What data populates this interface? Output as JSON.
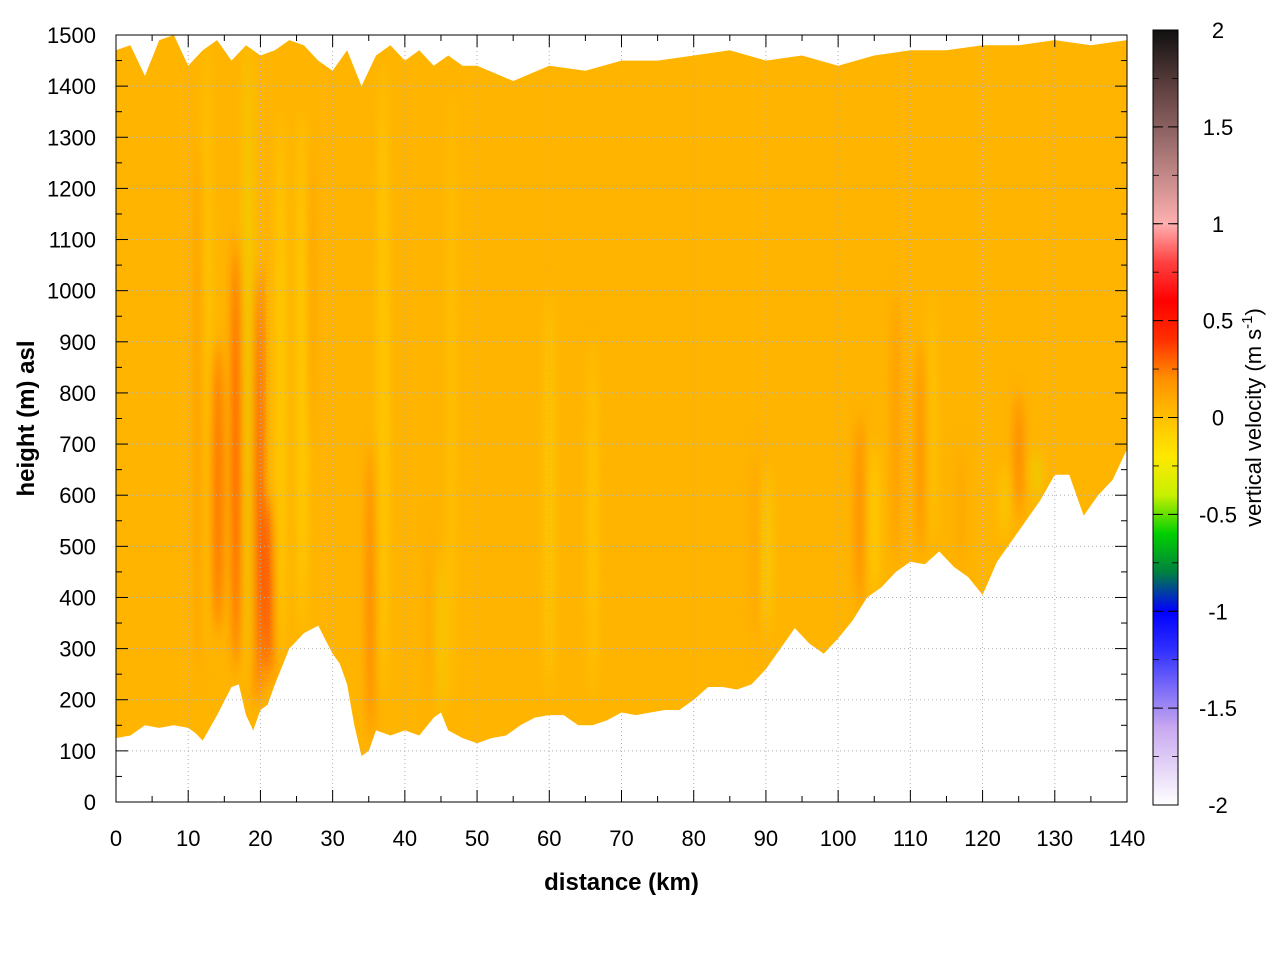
{
  "chart_data": {
    "type": "heatmap",
    "title": "",
    "xlabel": "distance (km)",
    "ylabel": "height (m) asl",
    "xlim": [
      0,
      140
    ],
    "ylim": [
      0,
      1500
    ],
    "x_ticks": [
      0,
      10,
      20,
      30,
      40,
      50,
      60,
      70,
      80,
      90,
      100,
      110,
      120,
      130,
      140
    ],
    "x_tick_labels": [
      "0",
      "10",
      "20",
      "30",
      "40",
      "50",
      "60",
      "70",
      "80",
      "90",
      "100",
      "110",
      "120",
      "130",
      "140"
    ],
    "y_ticks": [
      0,
      100,
      200,
      300,
      400,
      500,
      600,
      700,
      800,
      900,
      1000,
      1100,
      1200,
      1300,
      1400,
      1500
    ],
    "y_tick_labels": [
      "0",
      "100",
      "200",
      "300",
      "400",
      "500",
      "600",
      "700",
      "800",
      "900",
      "1000",
      "1100",
      "1200",
      "1300",
      "1400",
      "1500"
    ],
    "grid": true,
    "colorbar": {
      "label_main": "vertical velocity (m s",
      "label_sup": "-1",
      "label_end": ")",
      "range": [
        -2,
        2
      ],
      "ticks": [
        2,
        1.5,
        1,
        0.5,
        0,
        -0.5,
        -1,
        -1.5,
        -2
      ],
      "tick_labels": [
        "2",
        "1.5",
        "1",
        "0.5",
        "0",
        "-0.5",
        "-1",
        "-1.5",
        "-2"
      ],
      "colors": [
        {
          "v": -2.0,
          "c": "#ffffff"
        },
        {
          "v": -1.6,
          "c": "#c8a8f0"
        },
        {
          "v": -1.2,
          "c": "#3030ff"
        },
        {
          "v": -1.0,
          "c": "#0000ff"
        },
        {
          "v": -0.8,
          "c": "#008040"
        },
        {
          "v": -0.6,
          "c": "#00d000"
        },
        {
          "v": -0.4,
          "c": "#c8f000"
        },
        {
          "v": -0.2,
          "c": "#ffe800"
        },
        {
          "v": 0.0,
          "c": "#ffc000"
        },
        {
          "v": 0.2,
          "c": "#ff9000"
        },
        {
          "v": 0.4,
          "c": "#ff3000"
        },
        {
          "v": 0.6,
          "c": "#ff0000"
        },
        {
          "v": 0.8,
          "c": "#ff4040"
        },
        {
          "v": 1.0,
          "c": "#ffb0b0"
        },
        {
          "v": 1.4,
          "c": "#a07070"
        },
        {
          "v": 1.7,
          "c": "#604040"
        },
        {
          "v": 2.0,
          "c": "#101010"
        }
      ]
    },
    "field": {
      "background_value": 0.05,
      "background_color": "#ffb000",
      "terrain_km": [
        0,
        2,
        4,
        6,
        8,
        10,
        11,
        12,
        14,
        16,
        17,
        18,
        19,
        20,
        21,
        22,
        24,
        26,
        28,
        30,
        31,
        32,
        33,
        34,
        35,
        36,
        38,
        40,
        42,
        44,
        45,
        46,
        48,
        50,
        52,
        54,
        56,
        58,
        60,
        62,
        64,
        66,
        68,
        70,
        72,
        74,
        76,
        78,
        80,
        82,
        84,
        86,
        88,
        90,
        92,
        94,
        96,
        98,
        100,
        102,
        104,
        106,
        108,
        110,
        112,
        114,
        116,
        118,
        120,
        122,
        124,
        126,
        128,
        130,
        132,
        134,
        136,
        138,
        140
      ],
      "terrain_m": [
        125,
        130,
        150,
        145,
        150,
        145,
        135,
        120,
        170,
        225,
        230,
        170,
        140,
        180,
        190,
        230,
        300,
        330,
        345,
        290,
        270,
        230,
        150,
        90,
        100,
        140,
        130,
        140,
        130,
        165,
        175,
        140,
        125,
        115,
        125,
        130,
        150,
        165,
        170,
        170,
        150,
        150,
        160,
        175,
        170,
        175,
        180,
        180,
        200,
        225,
        225,
        220,
        230,
        260,
        300,
        340,
        310,
        290,
        320,
        355,
        400,
        420,
        450,
        470,
        465,
        490,
        460,
        440,
        405,
        470,
        510,
        550,
        590,
        640,
        640,
        560,
        600,
        630,
        690
      ],
      "top_km": [
        0,
        2,
        4,
        6,
        8,
        10,
        12,
        14,
        16,
        18,
        20,
        22,
        24,
        26,
        28,
        30,
        32,
        34,
        36,
        38,
        40,
        42,
        44,
        46,
        48,
        50,
        55,
        60,
        65,
        70,
        75,
        80,
        85,
        90,
        95,
        100,
        105,
        110,
        115,
        120,
        125,
        130,
        135,
        140
      ],
      "top_m": [
        1470,
        1480,
        1420,
        1490,
        1500,
        1440,
        1470,
        1490,
        1450,
        1480,
        1460,
        1470,
        1490,
        1480,
        1450,
        1430,
        1470,
        1400,
        1460,
        1480,
        1450,
        1470,
        1440,
        1460,
        1440,
        1440,
        1410,
        1440,
        1430,
        1450,
        1450,
        1460,
        1470,
        1450,
        1460,
        1440,
        1460,
        1470,
        1470,
        1480,
        1480,
        1490,
        1480,
        1490
      ],
      "bands": [
        {
          "x": 11.5,
          "ytop": 1300,
          "ybot": 250,
          "w": 1.0,
          "v": 0.2
        },
        {
          "x": 14.0,
          "ytop": 900,
          "ybot": 330,
          "w": 1.6,
          "v": 0.3
        },
        {
          "x": 16.8,
          "ytop": 1100,
          "ybot": 260,
          "w": 1.1,
          "v": 0.4
        },
        {
          "x": 18.3,
          "ytop": 1500,
          "ybot": 250,
          "w": 0.7,
          "v": -0.3
        },
        {
          "x": 19.6,
          "ytop": 1050,
          "ybot": 200,
          "w": 1.1,
          "v": 0.5
        },
        {
          "x": 21.2,
          "ytop": 600,
          "ybot": 240,
          "w": 1.1,
          "v": 0.45
        },
        {
          "x": 22.8,
          "ytop": 1350,
          "ybot": 300,
          "w": 0.7,
          "v": -0.2
        },
        {
          "x": 25.8,
          "ytop": 1350,
          "ybot": 330,
          "w": 0.8,
          "v": -0.2
        },
        {
          "x": 26.8,
          "ytop": 1300,
          "ybot": 700,
          "w": 0.8,
          "v": 0.2
        },
        {
          "x": 12.6,
          "ytop": 1500,
          "ybot": 300,
          "w": 0.5,
          "v": -0.2
        },
        {
          "x": 35.3,
          "ytop": 700,
          "ybot": 120,
          "w": 0.8,
          "v": 0.3
        },
        {
          "x": 37.0,
          "ytop": 1450,
          "ybot": 200,
          "w": 0.8,
          "v": -0.15
        },
        {
          "x": 43.5,
          "ytop": 550,
          "ybot": 170,
          "w": 0.6,
          "v": 0.15
        },
        {
          "x": 45.0,
          "ytop": 480,
          "ybot": 170,
          "w": 0.5,
          "v": -0.3
        },
        {
          "x": 46.5,
          "ytop": 1400,
          "ybot": 180,
          "w": 0.6,
          "v": -0.1
        },
        {
          "x": 60.0,
          "ytop": 1000,
          "ybot": 200,
          "w": 1.0,
          "v": -0.1
        },
        {
          "x": 66.0,
          "ytop": 900,
          "ybot": 200,
          "w": 1.0,
          "v": -0.08
        },
        {
          "x": 88.5,
          "ytop": 700,
          "ybot": 300,
          "w": 0.8,
          "v": 0.15
        },
        {
          "x": 90.2,
          "ytop": 650,
          "ybot": 330,
          "w": 0.6,
          "v": -0.25
        },
        {
          "x": 103.0,
          "ytop": 760,
          "ybot": 380,
          "w": 1.0,
          "v": 0.25
        },
        {
          "x": 105.0,
          "ytop": 700,
          "ybot": 400,
          "w": 0.7,
          "v": -0.2
        },
        {
          "x": 108.0,
          "ytop": 1000,
          "ybot": 460,
          "w": 1.0,
          "v": 0.2
        },
        {
          "x": 111.5,
          "ytop": 900,
          "ybot": 480,
          "w": 0.9,
          "v": 0.25
        },
        {
          "x": 113.0,
          "ytop": 1000,
          "ybot": 500,
          "w": 0.5,
          "v": -0.15
        },
        {
          "x": 117.0,
          "ytop": 700,
          "ybot": 450,
          "w": 0.8,
          "v": 0.15
        },
        {
          "x": 123.0,
          "ytop": 650,
          "ybot": 520,
          "w": 0.6,
          "v": -0.25
        },
        {
          "x": 125.0,
          "ytop": 800,
          "ybot": 560,
          "w": 0.8,
          "v": 0.3
        },
        {
          "x": 127.5,
          "ytop": 680,
          "ybot": 600,
          "w": 0.8,
          "v": -0.35
        }
      ]
    }
  }
}
